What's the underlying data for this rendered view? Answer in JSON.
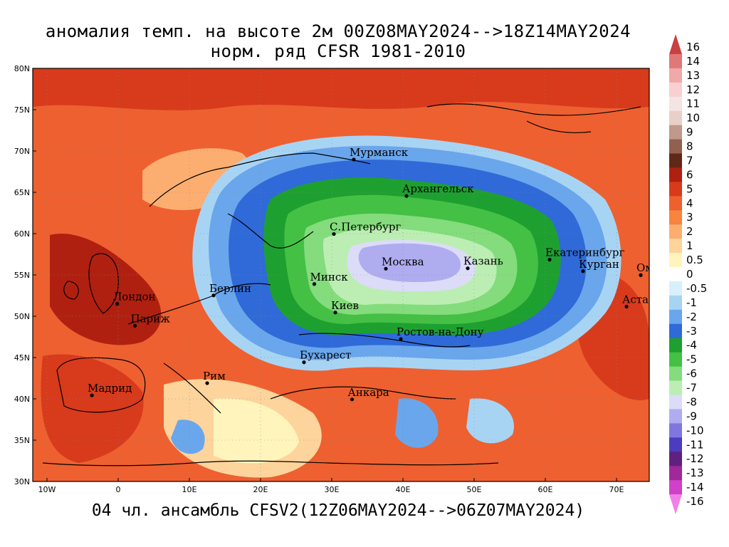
{
  "title_line1": "аномалия темп. на высоте 2м 00Z08MAY2024-->18Z14MAY2024",
  "title_line2": "норм. ряд CFSR 1981-2010",
  "footer": "04 чл. ансамбль CFSV2(12Z06MAY2024-->06Z07MAY2024)",
  "lat_labels": [
    "80N",
    "75N",
    "70N",
    "65N",
    "60N",
    "55N",
    "50N",
    "45N",
    "40N",
    "35N",
    "30N"
  ],
  "lon_labels": [
    "10W",
    "0",
    "10E",
    "20E",
    "30E",
    "40E",
    "50E",
    "60E",
    "70E"
  ],
  "cities": [
    {
      "name": "Мурманск",
      "lon": 33.1,
      "lat": 68.97
    },
    {
      "name": "Архангельск",
      "lon": 40.5,
      "lat": 64.55
    },
    {
      "name": "С.Петербург",
      "lon": 30.3,
      "lat": 59.95
    },
    {
      "name": "Москва",
      "lon": 37.6,
      "lat": 55.75
    },
    {
      "name": "Казань",
      "lon": 49.1,
      "lat": 55.8
    },
    {
      "name": "Екатеринбург",
      "lon": 60.6,
      "lat": 56.85
    },
    {
      "name": "Курган",
      "lon": 65.3,
      "lat": 55.45
    },
    {
      "name": "Омск",
      "lon": 73.4,
      "lat": 54.98
    },
    {
      "name": "Астана",
      "lon": 71.4,
      "lat": 51.17
    },
    {
      "name": "Минск",
      "lon": 27.55,
      "lat": 53.9
    },
    {
      "name": "Киев",
      "lon": 30.5,
      "lat": 50.45
    },
    {
      "name": "Берлин",
      "lon": 13.4,
      "lat": 52.52
    },
    {
      "name": "Лондон",
      "lon": -0.13,
      "lat": 51.5
    },
    {
      "name": "Париж",
      "lon": 2.35,
      "lat": 48.85
    },
    {
      "name": "Ростов-на-Дону",
      "lon": 39.7,
      "lat": 47.23
    },
    {
      "name": "Бухарест",
      "lon": 26.1,
      "lat": 44.43
    },
    {
      "name": "Рим",
      "lon": 12.5,
      "lat": 41.9
    },
    {
      "name": "Мадрид",
      "lon": -3.7,
      "lat": 40.42
    },
    {
      "name": "Анкара",
      "lon": 32.85,
      "lat": 39.93
    }
  ],
  "colorbar": {
    "labels": [
      "16",
      "14",
      "13",
      "12",
      "11",
      "10",
      "9",
      "8",
      "7",
      "6",
      "5",
      "4",
      "3",
      "2",
      "1",
      "0.5",
      "0",
      "-0.5",
      "-1",
      "-2",
      "-3",
      "-4",
      "-5",
      "-6",
      "-7",
      "-8",
      "-9",
      "-10",
      "-11",
      "-12",
      "-13",
      "-14",
      "-16"
    ],
    "colors": [
      "#c84040",
      "#e07878",
      "#f0a8a8",
      "#f8d0d0",
      "#f4e4e4",
      "#e8d0c8",
      "#c0988c",
      "#906050",
      "#602818",
      "#b02010",
      "#d83a1c",
      "#ee6030",
      "#f8843e",
      "#fcae70",
      "#fdd49c",
      "#fff5bc",
      "#ffffff",
      "#d8f0fa",
      "#a8d4f4",
      "#6aa6ec",
      "#2f6ad8",
      "#1ea030",
      "#44c044",
      "#84dc7c",
      "#bceeb4",
      "#dcdcf8",
      "#b0acf0",
      "#8076e0",
      "#4c3cc0",
      "#602080",
      "#a02898",
      "#d040c8",
      "#f080e8"
    ]
  },
  "anomaly_colors": {
    "hot1": "#ee6030",
    "hot2": "#d83a1c",
    "hot3": "#b02010",
    "warm": "#f8843e",
    "mild": "#fcae70",
    "light": "#fdd49c",
    "pale": "#fff5bc",
    "blue_light": "#a8d4f4",
    "blue": "#6aa6ec",
    "blue_dark": "#2f6ad8",
    "green": "#1ea030",
    "green_light": "#44c044",
    "green_pale": "#84dc7c",
    "mint": "#bceeb4",
    "lavender": "#dcdcf8",
    "violet": "#b0acf0"
  }
}
